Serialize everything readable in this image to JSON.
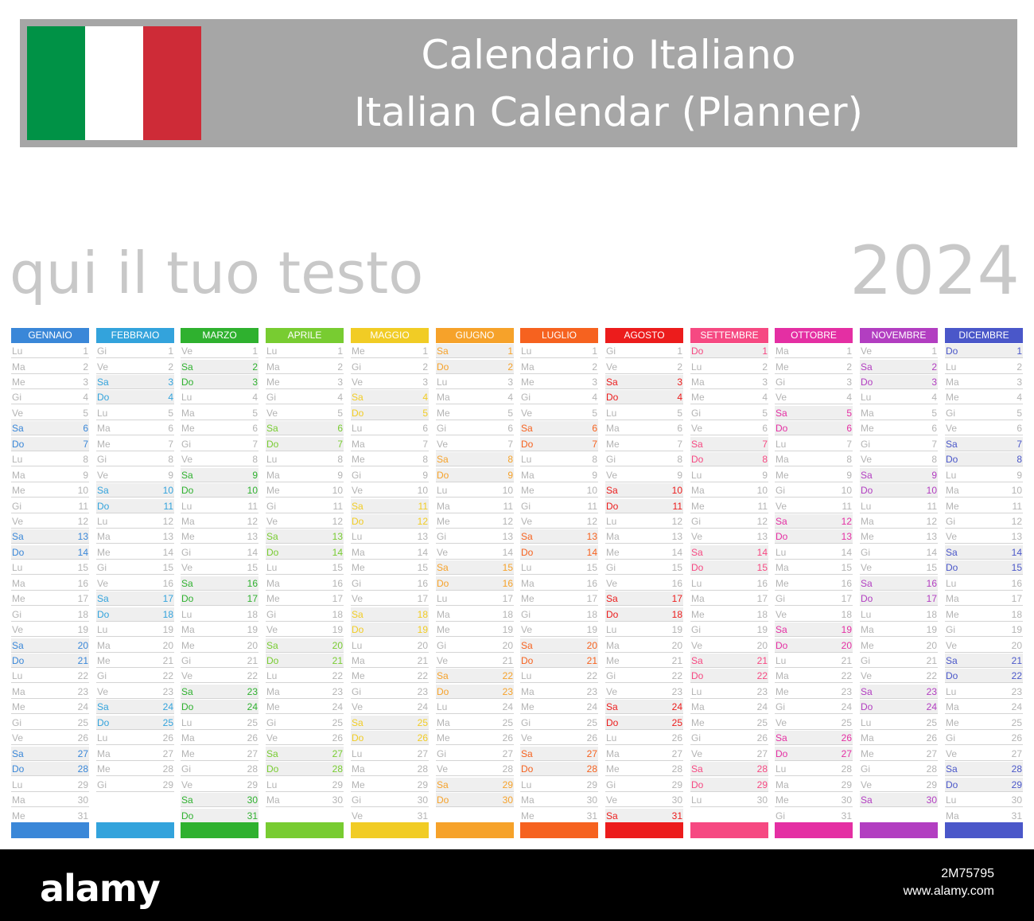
{
  "header": {
    "title_it": "Calendario Italiano",
    "title_en": "Italian Calendar (Planner)",
    "flag_colors": [
      "#009246",
      "#ffffff",
      "#ce2b37"
    ]
  },
  "subtitle": "qui il tuo testo",
  "year": "2024",
  "months": [
    {
      "name": "GENNAIO",
      "color": "#3a87d8",
      "start": 0,
      "days": 31
    },
    {
      "name": "FEBBRAIO",
      "color": "#33a3dc",
      "start": 3,
      "days": 29
    },
    {
      "name": "MARZO",
      "color": "#2fb12f",
      "start": 4,
      "days": 31
    },
    {
      "name": "APRILE",
      "color": "#78cc31",
      "start": 0,
      "days": 30
    },
    {
      "name": "MAGGIO",
      "color": "#f1cc25",
      "start": 2,
      "days": 31
    },
    {
      "name": "GIUGNO",
      "color": "#f6a22a",
      "start": 5,
      "days": 30
    },
    {
      "name": "LUGLIO",
      "color": "#f6621f",
      "start": 0,
      "days": 31
    },
    {
      "name": "AGOSTO",
      "color": "#ec1c1c",
      "start": 3,
      "days": 31
    },
    {
      "name": "SETTEMBRE",
      "color": "#f64982",
      "start": 6,
      "days": 30
    },
    {
      "name": "OTTOBRE",
      "color": "#e42fa3",
      "start": 1,
      "days": 31
    },
    {
      "name": "NOVEMBRE",
      "color": "#b23ec1",
      "start": 4,
      "days": 30
    },
    {
      "name": "DICEMBRE",
      "color": "#4a57c9",
      "start": 6,
      "days": 31
    }
  ],
  "weekday_abbr": [
    "Lu",
    "Ma",
    "Me",
    "Gi",
    "Ve",
    "Sa",
    "Do"
  ],
  "footer": {
    "logo": "alamy",
    "image_id": "2M75795",
    "site": "www.alamy.com"
  }
}
